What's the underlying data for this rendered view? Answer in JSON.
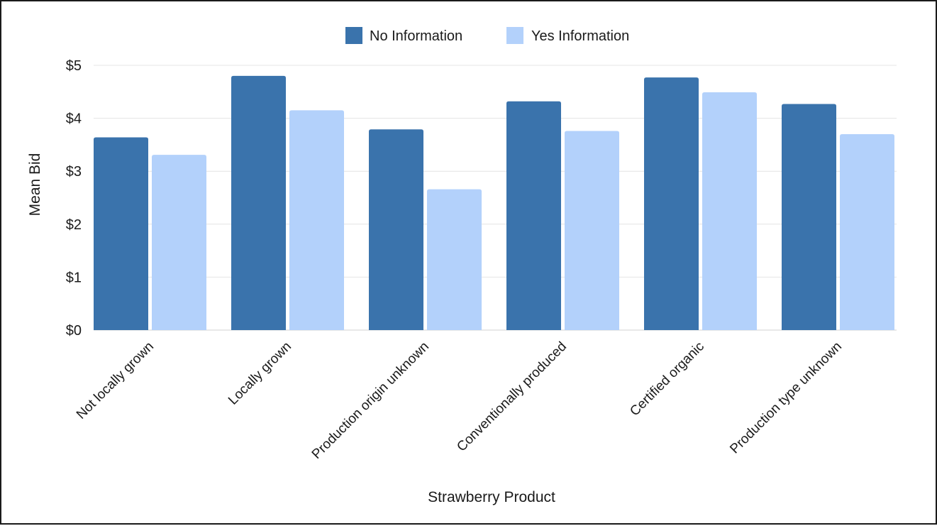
{
  "chart_data": {
    "type": "bar",
    "title": "",
    "xlabel": "Strawberry Product",
    "ylabel": "Mean Bid",
    "ylim": [
      0,
      5
    ],
    "y_ticks": [
      0,
      1,
      2,
      3,
      4,
      5
    ],
    "y_tick_labels": [
      "$0",
      "$1",
      "$2",
      "$3",
      "$4",
      "$5"
    ],
    "grid": true,
    "legend_position": "top",
    "categories": [
      "Not locally grown",
      "Locally grown",
      "Production origin unknown",
      "Conventionally produced",
      "Certified organic",
      "Production type unknown"
    ],
    "series": [
      {
        "name": "No Information",
        "color": "#3a73ac",
        "values": [
          3.64,
          4.8,
          3.79,
          4.32,
          4.77,
          4.27
        ]
      },
      {
        "name": "Yes Information",
        "color": "#b3d1fb",
        "values": [
          3.31,
          4.15,
          2.66,
          3.76,
          4.49,
          3.7
        ]
      }
    ]
  }
}
